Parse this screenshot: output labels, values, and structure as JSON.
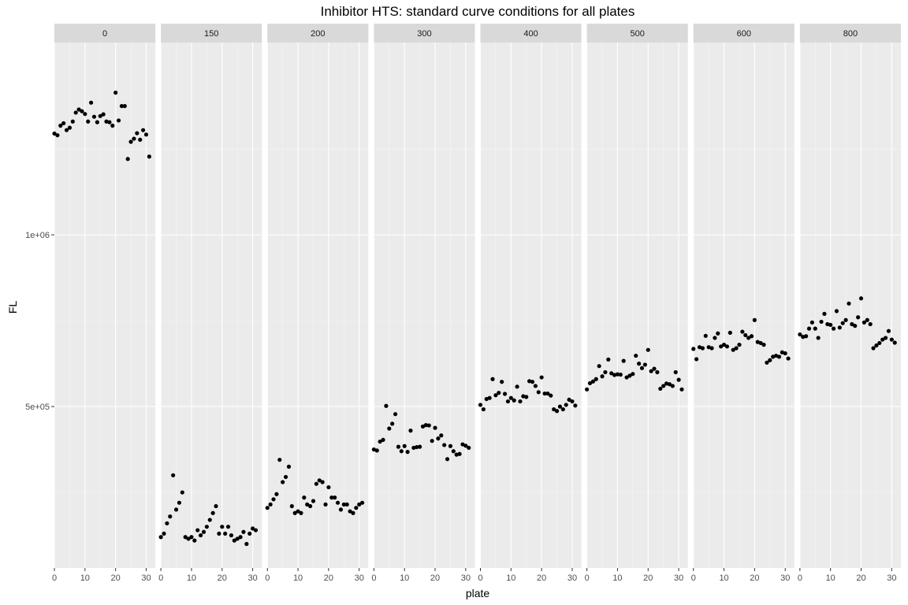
{
  "chart_data": {
    "type": "scatter",
    "title": "Inhibitor HTS: standard curve conditions for all plates",
    "xlabel": "plate",
    "ylabel": "FL",
    "facet_labels": [
      "0",
      "150",
      "200",
      "300",
      "400",
      "500",
      "600",
      "800"
    ],
    "xlim": [
      0,
      33
    ],
    "ylim": [
      30000,
      1560000
    ],
    "x_ticks": [
      0,
      10,
      20,
      30
    ],
    "x_tick_labels": [
      "0",
      "10",
      "20",
      "30"
    ],
    "y_ticks": [
      500000,
      1000000
    ],
    "y_tick_labels": [
      "5e+05",
      "1e+06"
    ],
    "y_minor_ticks": [
      250000,
      750000,
      1250000
    ],
    "grid": true,
    "x": [
      0,
      1,
      2,
      3,
      4,
      5,
      6,
      7,
      8,
      9,
      10,
      11,
      12,
      13,
      14,
      15,
      16,
      17,
      18,
      19,
      20,
      21,
      22,
      23,
      24,
      25,
      26,
      27,
      28,
      29,
      30,
      31
    ],
    "series": [
      {
        "name": "0",
        "values": [
          1295000,
          1290000,
          1318000,
          1325000,
          1305000,
          1312000,
          1330000,
          1356000,
          1365000,
          1360000,
          1352000,
          1330000,
          1385000,
          1344000,
          1328000,
          1346000,
          1351000,
          1330000,
          1328000,
          1318000,
          1414000,
          1333000,
          1375000,
          1375000,
          1221000,
          1271000,
          1280000,
          1296000,
          1277000,
          1305000,
          1292000,
          1228000
        ]
      },
      {
        "name": "150",
        "values": [
          120000,
          130000,
          160000,
          180000,
          300000,
          200000,
          220000,
          250000,
          120000,
          115000,
          120000,
          110000,
          140000,
          125000,
          135000,
          150000,
          170000,
          190000,
          210000,
          130000,
          150000,
          130000,
          150000,
          125000,
          110000,
          115000,
          120000,
          135000,
          100000,
          130000,
          145000,
          140000
        ]
      },
      {
        "name": "200",
        "values": [
          205000,
          215000,
          230000,
          245000,
          345000,
          280000,
          295000,
          325000,
          210000,
          190000,
          195000,
          190000,
          235000,
          215000,
          210000,
          225000,
          275000,
          285000,
          280000,
          215000,
          265000,
          235000,
          235000,
          220000,
          200000,
          215000,
          215000,
          195000,
          190000,
          205000,
          215000,
          220000
        ]
      },
      {
        "name": "300",
        "values": [
          375000,
          372000,
          398000,
          403000,
          502000,
          436000,
          450000,
          478000,
          383000,
          370000,
          385000,
          368000,
          430000,
          380000,
          382000,
          383000,
          442000,
          446000,
          445000,
          400000,
          438000,
          407000,
          416000,
          388000,
          347000,
          385000,
          370000,
          360000,
          362000,
          390000,
          386000,
          380000
        ]
      },
      {
        "name": "400",
        "values": [
          505000,
          492000,
          522000,
          525000,
          580000,
          533000,
          540000,
          572000,
          537000,
          515000,
          525000,
          518000,
          558000,
          515000,
          530000,
          528000,
          574000,
          572000,
          560000,
          542000,
          585000,
          538000,
          538000,
          532000,
          492000,
          487000,
          500000,
          492000,
          505000,
          520000,
          515000,
          503000
        ]
      },
      {
        "name": "500",
        "values": [
          550000,
          568000,
          573000,
          580000,
          618000,
          588000,
          600000,
          637000,
          597000,
          592000,
          594000,
          593000,
          633000,
          585000,
          590000,
          595000,
          648000,
          625000,
          612000,
          622000,
          665000,
          603000,
          610000,
          600000,
          552000,
          560000,
          567000,
          565000,
          560000,
          600000,
          578000,
          550000
        ]
      },
      {
        "name": "600",
        "values": [
          668000,
          638000,
          673000,
          670000,
          706000,
          673000,
          670000,
          700000,
          713000,
          675000,
          680000,
          675000,
          715000,
          665000,
          670000,
          680000,
          718000,
          708000,
          700000,
          705000,
          752000,
          688000,
          685000,
          680000,
          628000,
          635000,
          645000,
          648000,
          645000,
          658000,
          655000,
          640000
        ]
      },
      {
        "name": "800",
        "values": [
          710000,
          703000,
          705000,
          727000,
          745000,
          727000,
          700000,
          747000,
          770000,
          740000,
          738000,
          727000,
          778000,
          730000,
          743000,
          752000,
          800000,
          740000,
          735000,
          760000,
          815000,
          745000,
          752000,
          740000,
          670000,
          678000,
          685000,
          695000,
          700000,
          720000,
          695000,
          686000
        ]
      }
    ]
  }
}
